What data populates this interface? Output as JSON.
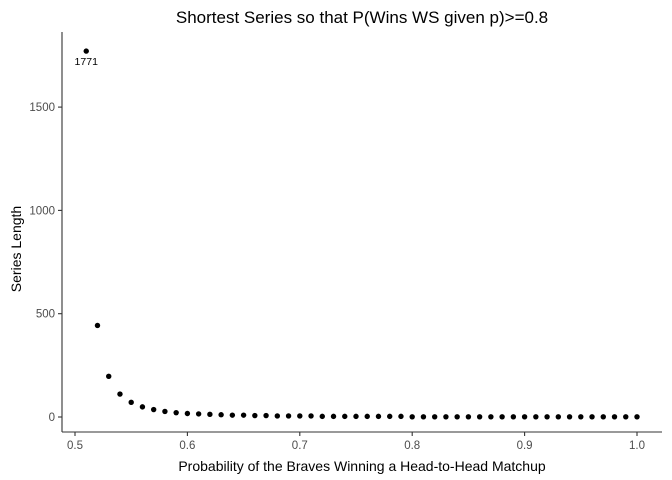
{
  "chart_data": {
    "type": "scatter",
    "title": "Shortest Series so that P(Wins WS given p)>=0.8",
    "xlabel": "Probability of the Braves Winning a Head-to-Head Matchup",
    "ylabel": "Series Length",
    "xlim": [
      0.5,
      1.0
    ],
    "ylim": [
      0,
      1771
    ],
    "x_ticks": [
      0.5,
      0.6,
      0.7,
      0.8,
      0.9,
      1.0
    ],
    "x_tick_labels": [
      "0.5",
      "0.6",
      "0.7",
      "0.8",
      "0.9",
      "1.0"
    ],
    "y_ticks": [
      0,
      500,
      1000,
      1500
    ],
    "y_tick_labels": [
      "0",
      "500",
      "1000",
      "1500"
    ],
    "grid": false,
    "legend": "none",
    "annotations": [
      {
        "text": "1771",
        "x": 0.51,
        "y": 1771
      }
    ],
    "series": [
      {
        "x": [
          0.51,
          0.52,
          0.53,
          0.54,
          0.55,
          0.56,
          0.57,
          0.58,
          0.59,
          0.6,
          0.61,
          0.62,
          0.63,
          0.64,
          0.65,
          0.66,
          0.67,
          0.68,
          0.69,
          0.7,
          0.71,
          0.72,
          0.73,
          0.74,
          0.75,
          0.76,
          0.77,
          0.78,
          0.79,
          0.8,
          0.81,
          0.82,
          0.83,
          0.84,
          0.85,
          0.86,
          0.87,
          0.88,
          0.89,
          0.9,
          0.91,
          0.92,
          0.93,
          0.94,
          0.95,
          0.96,
          0.97,
          0.98,
          0.99,
          1.0
        ],
        "y": [
          1771,
          443,
          197,
          111,
          71,
          49,
          36,
          27,
          21,
          17,
          15,
          13,
          11,
          9,
          9,
          7,
          7,
          5,
          5,
          5,
          5,
          3,
          3,
          3,
          3,
          3,
          3,
          3,
          3,
          1,
          1,
          1,
          1,
          1,
          1,
          1,
          1,
          1,
          1,
          1,
          1,
          1,
          1,
          1,
          1,
          1,
          1,
          1,
          1,
          1
        ]
      }
    ]
  },
  "colors": {
    "points": "#000000",
    "axis": "#333333",
    "tick_text": "#4d4d4d",
    "background": "#ffffff"
  }
}
